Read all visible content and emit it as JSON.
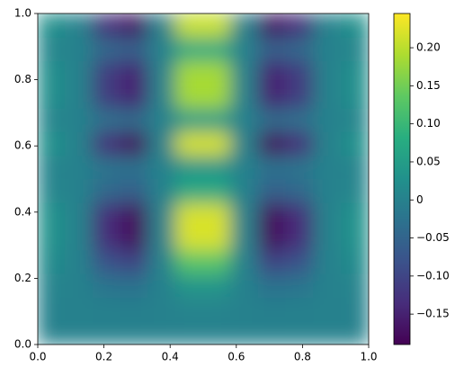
{
  "chart_data": {
    "type": "heatmap",
    "colormap": "viridis",
    "xlim": [
      0,
      1
    ],
    "ylim": [
      0,
      1
    ],
    "xticks": [
      {
        "value": 0,
        "label": "0.0"
      },
      {
        "value": 0.2,
        "label": "0.2"
      },
      {
        "value": 0.4,
        "label": "0.4"
      },
      {
        "value": 0.6,
        "label": "0.6"
      },
      {
        "value": 0.8,
        "label": "0.8"
      },
      {
        "value": 1,
        "label": "1.0"
      }
    ],
    "yticks": [
      {
        "value": 0,
        "label": "0.0"
      },
      {
        "value": 0.2,
        "label": "0.2"
      },
      {
        "value": 0.4,
        "label": "0.4"
      },
      {
        "value": 0.6,
        "label": "0.6"
      },
      {
        "value": 0.8,
        "label": "0.8"
      },
      {
        "value": 1,
        "label": "1.0"
      }
    ],
    "clim": [
      -0.19,
      0.245
    ],
    "cticks": [
      {
        "value": -0.15,
        "label": "−0.15"
      },
      {
        "value": -0.1,
        "label": "−0.10"
      },
      {
        "value": -0.05,
        "label": "−0.05"
      },
      0.0,
      {
        "value": 0.05,
        "label": "0.05"
      },
      {
        "value": 0.1,
        "label": "0.10"
      },
      {
        "value": 0.15,
        "label": "0.15"
      },
      {
        "value": 0.2,
        "label": "0.20"
      }
    ],
    "z": [
      [
        0,
        0,
        0,
        0,
        0,
        0,
        0,
        0,
        0,
        0,
        0,
        0
      ],
      [
        0.001,
        0,
        -0.003,
        -0.004,
        0,
        0.005,
        0.005,
        0,
        -0.004,
        -0.003,
        0,
        0.001
      ],
      [
        0.005,
        0,
        -0.021,
        -0.028,
        0,
        0.035,
        0.035,
        0,
        -0.028,
        -0.021,
        0,
        0.005
      ],
      [
        0.017,
        0,
        -0.079,
        -0.101,
        0,
        0.128,
        0.128,
        0,
        -0.101,
        -0.079,
        0,
        0.017
      ],
      [
        0.029,
        0,
        -0.136,
        -0.175,
        0,
        0.22,
        0.22,
        0,
        -0.175,
        -0.136,
        0,
        0.029
      ],
      [
        0.029,
        0,
        -0.136,
        -0.175,
        0,
        0.22,
        0.22,
        0,
        -0.175,
        -0.136,
        0,
        0.029
      ],
      [
        0.009,
        0,
        -0.043,
        -0.055,
        0,
        0.07,
        0.07,
        0,
        -0.055,
        -0.043,
        0,
        0.009
      ],
      [
        0.005,
        0,
        -0.021,
        -0.028,
        0,
        0.035,
        0.035,
        0,
        -0.028,
        -0.021,
        0,
        0.005
      ],
      [
        0.029,
        0,
        -0.136,
        -0.175,
        0,
        0.22,
        0.22,
        0,
        -0.175,
        -0.136,
        0,
        0.029
      ],
      [
        0.006,
        0,
        -0.029,
        -0.037,
        0,
        0.046,
        0.046,
        0,
        -0.037,
        -0.029,
        0,
        0.006
      ],
      [
        0.024,
        0,
        -0.114,
        -0.147,
        0,
        0.186,
        0.186,
        0,
        -0.147,
        -0.114,
        0,
        0.024
      ],
      [
        0.024,
        0,
        -0.114,
        -0.147,
        0,
        0.186,
        0.186,
        0,
        -0.147,
        -0.114,
        0,
        0.024
      ],
      [
        0.009,
        0,
        -0.043,
        -0.055,
        0,
        0.07,
        0.07,
        0,
        -0.055,
        -0.043,
        0,
        0.009
      ],
      [
        0.027,
        0,
        -0.129,
        -0.166,
        0,
        0.209,
        0.209,
        0,
        -0.166,
        -0.129,
        0,
        0.027
      ]
    ]
  }
}
